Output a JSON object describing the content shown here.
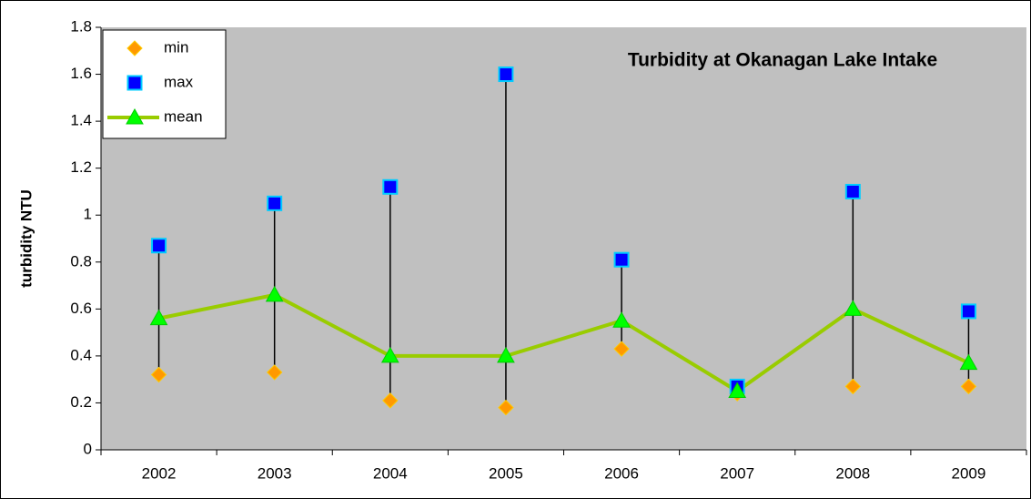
{
  "chart_data": {
    "type": "line",
    "title": "Turbidity at Okanagan Lake Intake",
    "y_label": "turbidity NTU",
    "categories": [
      "2002",
      "2003",
      "2004",
      "2005",
      "2006",
      "2007",
      "2008",
      "2009"
    ],
    "series": [
      {
        "name": "min",
        "color": "#ff9900",
        "marker": "diamond",
        "line": false,
        "values": [
          0.32,
          0.33,
          0.21,
          0.18,
          0.43,
          0.24,
          0.27,
          0.27
        ]
      },
      {
        "name": "max",
        "color": "#0000ff",
        "marker": "square",
        "line": false,
        "values": [
          0.87,
          1.05,
          1.12,
          1.6,
          0.81,
          0.27,
          1.1,
          0.59
        ]
      },
      {
        "name": "mean",
        "color": "#99cc00",
        "marker": "triangle",
        "line": true,
        "values": [
          0.56,
          0.66,
          0.4,
          0.4,
          0.55,
          0.25,
          0.6,
          0.37
        ]
      }
    ],
    "hi_lo_lines": true,
    "ylim": [
      0,
      1.8
    ],
    "yticks": [
      0,
      0.2,
      0.4,
      0.6,
      0.8,
      1,
      1.2,
      1.4,
      1.6,
      1.8
    ],
    "grid": false,
    "legend": "top-left"
  }
}
